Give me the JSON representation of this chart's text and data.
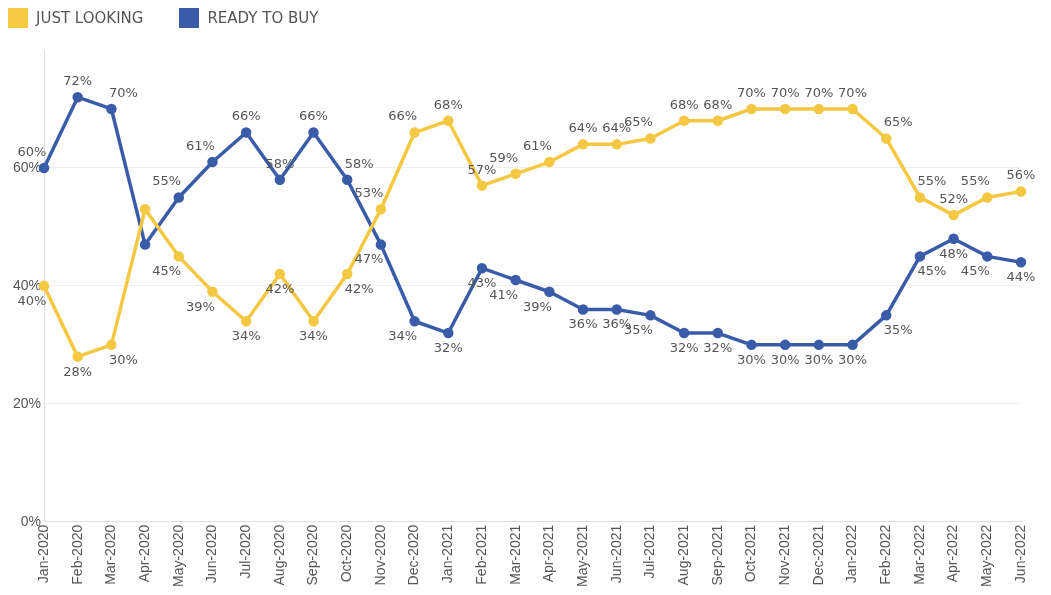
{
  "chart_data": {
    "type": "line",
    "categories": [
      "Jan-2020",
      "Feb-2020",
      "Mar-2020",
      "Apr-2020",
      "May-2020",
      "Jun-2020",
      "Jul-2020",
      "Aug-2020",
      "Sep-2020",
      "Oct-2020",
      "Nov-2020",
      "Dec-2020",
      "Jan-2021",
      "Feb-2021",
      "Mar-2021",
      "Apr-2021",
      "May-2021",
      "Jun-2021",
      "Jul-2021",
      "Aug-2021",
      "Sep-2021",
      "Oct-2021",
      "Nov-2021",
      "Dec-2021",
      "Jan-2022",
      "Feb-2022",
      "Mar-2022",
      "Apr-2022",
      "May-2022",
      "Jun-2022"
    ],
    "series": [
      {
        "name": "JUST LOOKING",
        "color": "#f4c842",
        "values": [
          40,
          28,
          30,
          53,
          45,
          39,
          34,
          42,
          34,
          42,
          53,
          66,
          68,
          57,
          59,
          61,
          64,
          64,
          65,
          68,
          68,
          70,
          70,
          70,
          70,
          65,
          55,
          52,
          55,
          56
        ],
        "value_labels": [
          "40%",
          "28%",
          "30%",
          null,
          "45%",
          "39%",
          "34%",
          "42%",
          "34%",
          "42%",
          "53%",
          "66%",
          "68%",
          "57%",
          "59%",
          "61%",
          "64%",
          "64%",
          "65%",
          "68%",
          "68%",
          "70%",
          "70%",
          "70%",
          "70%",
          "65%",
          "55%",
          "52%",
          "55%",
          "56%"
        ]
      },
      {
        "name": "READY TO BUY",
        "color": "#3a5ca8",
        "values": [
          60,
          72,
          70,
          47,
          55,
          61,
          66,
          58,
          66,
          58,
          47,
          34,
          32,
          43,
          41,
          39,
          36,
          36,
          35,
          32,
          32,
          30,
          30,
          30,
          30,
          35,
          45,
          48,
          45,
          44
        ],
        "value_labels": [
          "60%",
          "72%",
          "70%",
          null,
          "55%",
          "61%",
          "66%",
          "58%",
          "66%",
          "58%",
          "47%",
          "34%",
          "32%",
          "43%",
          "41%",
          "39%",
          "36%",
          "36%",
          "35%",
          "32%",
          "32%",
          "30%",
          "30%",
          "30%",
          "30%",
          "35%",
          "45%",
          "48%",
          "45%",
          "44%"
        ]
      }
    ],
    "ylim": [
      0,
      80
    ],
    "yticks": [
      {
        "value": 0,
        "label": "0%"
      },
      {
        "value": 20,
        "label": "20%"
      },
      {
        "value": 40,
        "label": "40%"
      },
      {
        "value": 60,
        "label": "60%"
      }
    ],
    "grid": "y",
    "legend": "top left",
    "marker": "circle",
    "line_style": "solid"
  }
}
